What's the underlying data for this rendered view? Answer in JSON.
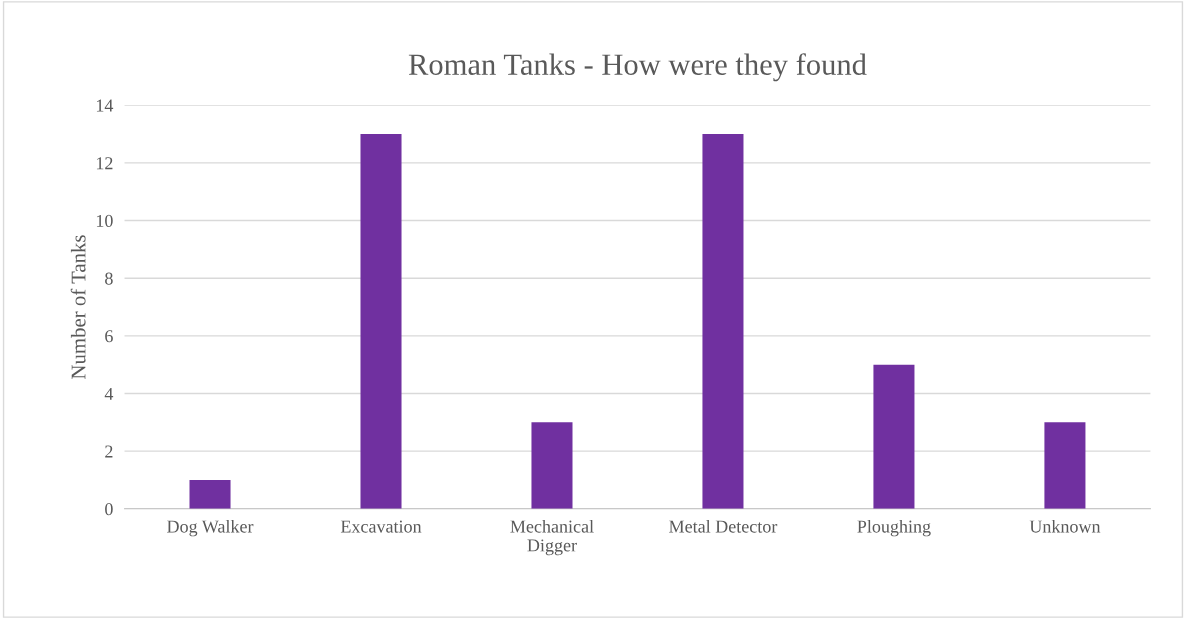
{
  "chart_data": {
    "type": "bar",
    "title": "Roman Tanks - How were they found",
    "ylabel": "Number of Tanks",
    "categories": [
      "Dog Walker",
      "Excavation",
      "Mechanical\nDigger",
      "Metal Detector",
      "Ploughing",
      "Unknown"
    ],
    "values": [
      1,
      13,
      3,
      13,
      5,
      3
    ],
    "color": "#7030a0",
    "ylim": [
      0,
      14
    ],
    "yticks": [
      0,
      2,
      4,
      6,
      8,
      10,
      12,
      14
    ],
    "grid": "y",
    "legend": false
  }
}
